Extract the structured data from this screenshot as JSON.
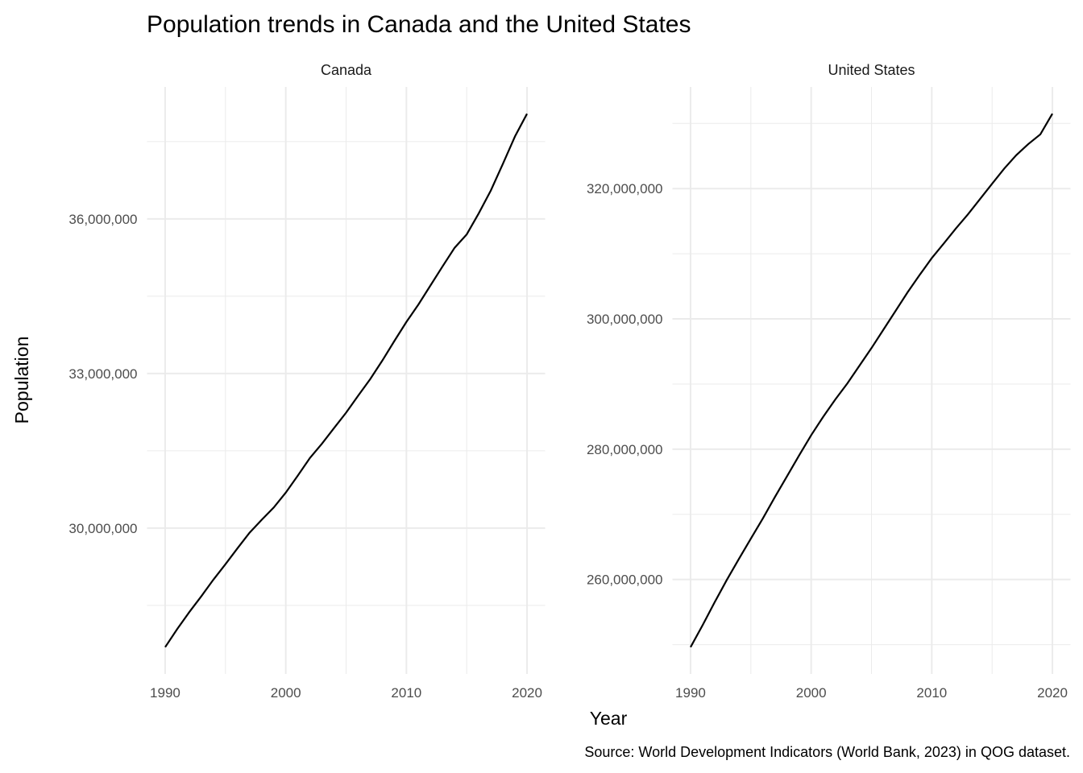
{
  "chart_data": {
    "type": "line",
    "title": "Population trends in Canada and the United States",
    "xlabel": "Year",
    "ylabel": "Population",
    "caption": "Source: World Development Indicators (World Bank, 2023) in QOG dataset.",
    "x": [
      1990,
      1991,
      1992,
      1993,
      1994,
      1995,
      1996,
      1997,
      1998,
      1999,
      2000,
      2001,
      2002,
      2003,
      2004,
      2005,
      2006,
      2007,
      2008,
      2009,
      2010,
      2011,
      2012,
      2013,
      2014,
      2015,
      2016,
      2017,
      2018,
      2019,
      2020
    ],
    "x_ticks": [
      1990,
      2000,
      2010,
      2020
    ],
    "x_tick_labels": [
      "1990",
      "2000",
      "2010",
      "2020"
    ],
    "grid": true,
    "panels": [
      {
        "name": "Canada",
        "xlim": [
          1988.5,
          2021.5
        ],
        "ylim": [
          27170000,
          38560000
        ],
        "y_ticks": [
          30000000,
          33000000,
          36000000
        ],
        "y_tick_labels": [
          "30,000,000",
          "33,000,000",
          "36,000,000"
        ],
        "y_minor": [
          28500000,
          31500000,
          34500000,
          37500000
        ],
        "values": [
          27690000,
          28040000,
          28370000,
          28680000,
          29000000,
          29300000,
          29610000,
          29910000,
          30160000,
          30400000,
          30690000,
          31020000,
          31360000,
          31640000,
          31940000,
          32240000,
          32570000,
          32890000,
          33250000,
          33630000,
          34000000,
          34340000,
          34710000,
          35080000,
          35440000,
          35700000,
          36110000,
          36550000,
          37070000,
          37600000,
          38040000
        ]
      },
      {
        "name": "United States",
        "xlim": [
          1988.5,
          2021.5
        ],
        "ylim": [
          245500000,
          335600000
        ],
        "y_ticks": [
          260000000,
          280000000,
          300000000,
          320000000
        ],
        "y_tick_labels": [
          "260,000,000",
          "280,000,000",
          "300,000,000",
          "320,000,000"
        ],
        "y_minor": [
          250000000,
          270000000,
          290000000,
          310000000,
          330000000
        ],
        "values": [
          249620000,
          252980000,
          256510000,
          259920000,
          263130000,
          266280000,
          269390000,
          272660000,
          275850000,
          279040000,
          282160000,
          284970000,
          287630000,
          290110000,
          292810000,
          295520000,
          298380000,
          301230000,
          304090000,
          306770000,
          309330000,
          311580000,
          313880000,
          316060000,
          318390000,
          320740000,
          323070000,
          325120000,
          326840000,
          328330000,
          331500000
        ]
      }
    ]
  }
}
